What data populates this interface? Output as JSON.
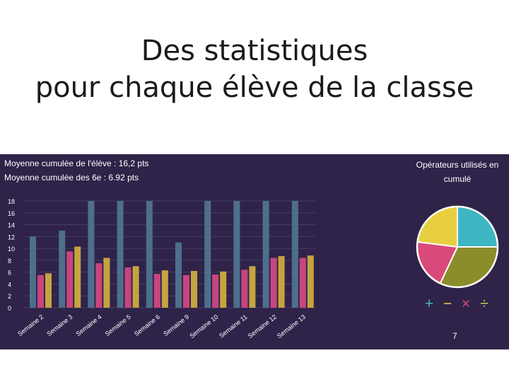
{
  "slide": {
    "title_line1": "Des statistiques",
    "title_line2": "pour chaque élève de la classe"
  },
  "stats": {
    "student_average": "Moyenne cumulée de l'élève : 16,2 pts",
    "class_average": "Moyenne cumulée des 6e : 6.92 pts"
  },
  "colors": {
    "background": "#2f2349",
    "series_student": "#4e6f8c",
    "series_class_pink": "#c8457e",
    "series_class_yellow": "#c5a440",
    "plus": "#3fb6c4",
    "minus": "#e8cf3f",
    "times": "#d94a7a",
    "divide": "#c8cf4a"
  },
  "chart_data": [
    {
      "type": "bar",
      "categories": [
        "Semaine 2",
        "Semaine 3",
        "Semaine 4",
        "Semaine 5",
        "Semaine 6",
        "Semaine 9",
        "Semaine 10",
        "Semaine 11",
        "Semaine 12",
        "Semaine 13"
      ],
      "series": [
        {
          "values": [
            12,
            13,
            18,
            18,
            18,
            11,
            18,
            18,
            18,
            18
          ]
        },
        {
          "values": [
            5.5,
            9.5,
            7.5,
            6.8,
            5.7,
            5.5,
            5.6,
            6.4,
            8.4,
            8.4
          ]
        },
        {
          "values": [
            5.8,
            10.3,
            8.4,
            7,
            6.3,
            6.2,
            6.1,
            7,
            8.7,
            8.8
          ]
        }
      ],
      "yticks": [
        "0",
        "2",
        "4",
        "6",
        "8",
        "10",
        "12",
        "14",
        "16",
        "18"
      ],
      "ylim": [
        0,
        18
      ],
      "grid": true
    },
    {
      "type": "pie",
      "title": [
        "Opérateurs utilisés en",
        "cumulé"
      ],
      "slices": [
        {
          "label": "+",
          "value": 25,
          "color": "#3fb6c4"
        },
        {
          "label": "÷",
          "value": 32,
          "color": "#8b8d2a"
        },
        {
          "label": "×",
          "value": 20,
          "color": "#d94a7a"
        },
        {
          "label": "−",
          "value": 23,
          "color": "#e8cf3f"
        }
      ]
    }
  ],
  "operators": {
    "plus": "+",
    "minus": "−",
    "times": "×",
    "divide": "÷"
  },
  "footer_value": "7"
}
